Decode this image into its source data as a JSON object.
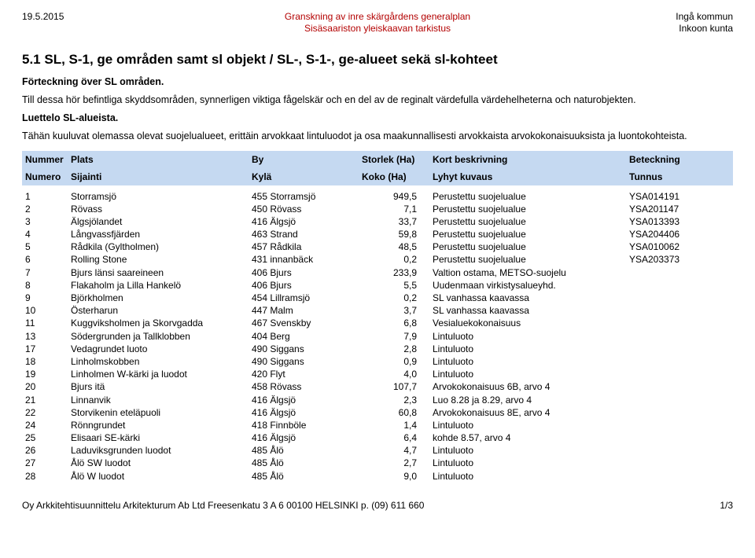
{
  "header": {
    "date": "19.5.2015",
    "title_sv": "Granskning av inre skärgårdens generalplan",
    "title_fi": "Sisäsaariston yleiskaavan tarkistus",
    "org_sv": "Ingå kommun",
    "org_fi": "Inkoon kunta"
  },
  "section_title": "5.1 SL, S-1, ge områden samt sl objekt / SL-, S-1-, ge-alueet sekä sl-kohteet",
  "intro": {
    "p1": "Förteckning över SL områden.",
    "p2": "Till dessa hör befintliga skyddsområden, synnerligen viktiga fågelskär och en del av de reginalt värdefulla värdehelheterna och naturobjekten.",
    "p3": "Luettelo SL-alueista.",
    "p4": "Tähän kuuluvat olemassa olevat suojelualueet, erittäin arvokkaat lintuluodot ja osa maakunnallisesti arvokkaista arvokokonaisuuksista ja luontokohteista."
  },
  "columns": {
    "sv": [
      "Nummer",
      "Plats",
      "By",
      "Storlek (Ha)",
      "Kort beskrivning",
      "Beteckning"
    ],
    "fi": [
      "Numero",
      "Sijainti",
      "Kylä",
      "Koko (Ha)",
      "Lyhyt kuvaus",
      "Tunnus"
    ]
  },
  "rows": [
    {
      "n": "1",
      "place": "Storramsjö",
      "village": "455 Storramsjö",
      "size": "949,5",
      "desc": "Perustettu suojelualue",
      "code": "YSA014191"
    },
    {
      "n": "2",
      "place": "Rövass",
      "village": "450 Rövass",
      "size": "7,1",
      "desc": "Perustettu suojelualue",
      "code": "YSA201147"
    },
    {
      "n": "3",
      "place": "Älgsjölandet",
      "village": "416 Älgsjö",
      "size": "33,7",
      "desc": "Perustettu suojelualue",
      "code": "YSA013393"
    },
    {
      "n": "4",
      "place": "Långvassfjärden",
      "village": "463 Strand",
      "size": "59,8",
      "desc": "Perustettu suojelualue",
      "code": "YSA204406"
    },
    {
      "n": "5",
      "place": "Rådkila (Gyltholmen)",
      "village": "457 Rådkila",
      "size": "48,5",
      "desc": "Perustettu suojelualue",
      "code": "YSA010062"
    },
    {
      "n": "6",
      "place": "Rolling Stone",
      "village": "431 innanbäck",
      "size": "0,2",
      "desc": "Perustettu suojelualue",
      "code": "YSA203373"
    },
    {
      "n": "7",
      "place": "Bjurs länsi saareineen",
      "village": "406 Bjurs",
      "size": "233,9",
      "desc": "Valtion ostama, METSO-suojelu",
      "code": ""
    },
    {
      "n": "8",
      "place": "Flakaholm ja Lilla Hankelö",
      "village": "406 Bjurs",
      "size": "5,5",
      "desc": "Uudenmaan virkistysalueyhd.",
      "code": ""
    },
    {
      "n": "9",
      "place": "Björkholmen",
      "village": "454 Lillramsjö",
      "size": "0,2",
      "desc": "SL vanhassa kaavassa",
      "code": ""
    },
    {
      "n": "10",
      "place": "Österharun",
      "village": "447 Malm",
      "size": "3,7",
      "desc": "SL vanhassa kaavassa",
      "code": ""
    },
    {
      "n": "11",
      "place": "Kuggviksholmen ja Skorvgadda",
      "village": "467 Svenskby",
      "size": "6,8",
      "desc": "Vesialuekokonaisuus",
      "code": ""
    },
    {
      "n": "13",
      "place": "Södergrunden ja Tallklobben",
      "village": "404 Berg",
      "size": "7,9",
      "desc": "Lintuluoto",
      "code": ""
    },
    {
      "n": "17",
      "place": "Vedagrundet luoto",
      "village": "490 Siggans",
      "size": "2,8",
      "desc": "Lintuluoto",
      "code": ""
    },
    {
      "n": "18",
      "place": "Linholmskobben",
      "village": "490 Siggans",
      "size": "0,9",
      "desc": "Lintuluoto",
      "code": ""
    },
    {
      "n": "19",
      "place": "Linholmen W-kärki ja luodot",
      "village": "420 Flyt",
      "size": "4,0",
      "desc": "Lintuluoto",
      "code": ""
    },
    {
      "n": "20",
      "place": "Bjurs itä",
      "village": "458 Rövass",
      "size": "107,7",
      "desc": "Arvokokonaisuus 6B, arvo 4",
      "code": ""
    },
    {
      "n": "21",
      "place": "Linnanvik",
      "village": "416 Älgsjö",
      "size": "2,3",
      "desc": "Luo 8.28 ja 8.29, arvo 4",
      "code": ""
    },
    {
      "n": "22",
      "place": "Storvikenin eteläpuoli",
      "village": "416 Älgsjö",
      "size": "60,8",
      "desc": "Arvokokonaisuus 8E, arvo 4",
      "code": ""
    },
    {
      "n": "24",
      "place": "Rönngrundet",
      "village": "418 Finnböle",
      "size": "1,4",
      "desc": "Lintuluoto",
      "code": ""
    },
    {
      "n": "25",
      "place": "Elisaari SE-kärki",
      "village": "416 Älgsjö",
      "size": "6,4",
      "desc": "kohde 8.57, arvo 4",
      "code": ""
    },
    {
      "n": "26",
      "place": "Laduviksgrunden luodot",
      "village": "485 Ålö",
      "size": "4,7",
      "desc": "Lintuluoto",
      "code": ""
    },
    {
      "n": "27",
      "place": "Ålö SW luodot",
      "village": "485 Ålö",
      "size": "2,7",
      "desc": "Lintuluoto",
      "code": ""
    },
    {
      "n": "28",
      "place": "Ålö W luodot",
      "village": "485 Ålö",
      "size": "9,0",
      "desc": "Lintuluoto",
      "code": ""
    }
  ],
  "footer": {
    "company": "Oy Arkkitehtisuunnittelu Arkitekturum Ab Ltd   Freesenkatu 3 A 6 00100 HELSINKI   p. (09) 611 660",
    "page": "1/3"
  },
  "style": {
    "header_bg": "#c5d9f1",
    "accent_color": "#b30000"
  }
}
